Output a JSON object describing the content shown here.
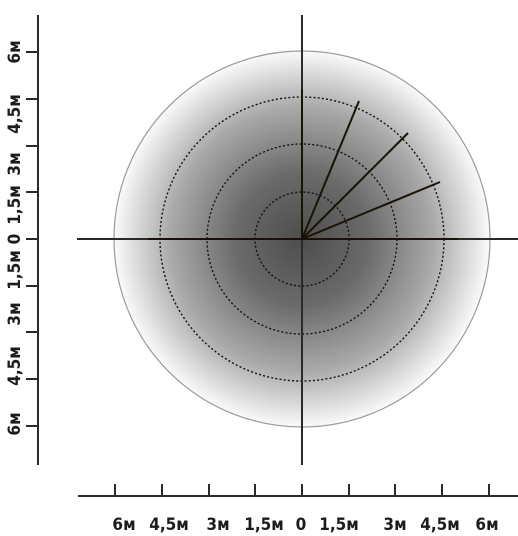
{
  "detection_zone": {
    "outer_ring_label": "6м",
    "dashed_rings": [
      "4,5м",
      "3м",
      "1,5м"
    ],
    "colors": {
      "ring_outline": "#9a9a9a",
      "gradient_center": "#555555",
      "gradient_edge": "#ffffff",
      "lines": "#1a1205"
    }
  },
  "bottom_scale": {
    "ticks": [
      "6м",
      "4,5м",
      "3м",
      "1,5м",
      "0",
      "1,5м",
      "3м",
      "4,5м",
      "6м"
    ]
  },
  "left_scale": {
    "ticks": [
      "6м",
      "4,5м",
      "3м",
      "1,5м",
      "0",
      "1,5м",
      "3м",
      "4,5м",
      "6м"
    ]
  }
}
